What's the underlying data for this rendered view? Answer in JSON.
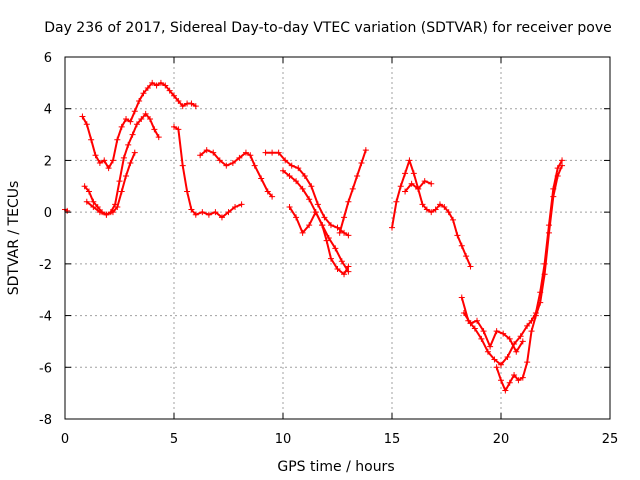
{
  "chart_data": {
    "type": "scatter",
    "title": "Day 236 of 2017, Sidereal Day-to-day VTEC variation (SDTVAR) for receiver pove",
    "xlabel": "GPS time / hours",
    "ylabel": "SDTVAR / TECUs",
    "xlim": [
      0,
      25
    ],
    "ylim": [
      -8,
      6
    ],
    "x_ticks": [
      0,
      5,
      10,
      15,
      20,
      25
    ],
    "y_ticks": [
      -8,
      -6,
      -4,
      -2,
      0,
      2,
      4,
      6
    ],
    "x_tick_labels": [
      "0",
      "5",
      "10",
      "15",
      "20",
      "25"
    ],
    "y_tick_labels": [
      "-8",
      "-6",
      "-4",
      "-2",
      "0",
      "2",
      "4",
      "6"
    ],
    "grid": true,
    "marker": "plus",
    "color": "#ff0000",
    "series": [
      {
        "x": [
          0.0,
          0.1
        ],
        "y": [
          0.1,
          0.05
        ]
      },
      {
        "x": [
          0.8,
          1.0,
          1.2,
          1.4,
          1.6,
          1.8,
          2.0,
          2.2,
          2.4,
          2.6,
          2.8,
          3.0,
          3.2,
          3.4,
          3.6,
          3.8,
          4.0,
          4.2,
          4.4,
          4.6,
          4.8,
          5.0,
          5.2,
          5.4,
          5.6,
          5.8,
          6.0
        ],
        "y": [
          3.7,
          3.4,
          2.8,
          2.2,
          1.9,
          2.0,
          1.7,
          2.0,
          2.8,
          3.3,
          3.6,
          3.5,
          3.9,
          4.3,
          4.6,
          4.8,
          5.0,
          4.9,
          5.0,
          4.9,
          4.7,
          4.5,
          4.3,
          4.1,
          4.2,
          4.2,
          4.1
        ]
      },
      {
        "x": [
          0.9,
          1.1,
          1.3,
          1.5,
          1.7,
          1.9,
          2.1,
          2.3,
          2.5,
          2.7,
          2.9,
          3.1,
          3.3,
          3.5,
          3.7,
          3.9,
          4.1,
          4.3
        ],
        "y": [
          1.0,
          0.8,
          0.4,
          0.2,
          0.0,
          -0.1,
          0.0,
          0.3,
          1.2,
          2.1,
          2.6,
          3.0,
          3.4,
          3.6,
          3.8,
          3.6,
          3.2,
          2.9
        ]
      },
      {
        "x": [
          1.0,
          1.3,
          1.6,
          1.9,
          2.2,
          2.4,
          2.6,
          2.8,
          3.0,
          3.2
        ],
        "y": [
          0.4,
          0.2,
          0.0,
          -0.1,
          0.0,
          0.2,
          0.8,
          1.4,
          1.9,
          2.3
        ]
      },
      {
        "x": [
          5.0,
          5.2,
          5.4,
          5.6,
          5.8,
          6.0,
          6.3,
          6.6,
          6.9,
          7.2,
          7.5,
          7.8,
          8.1
        ],
        "y": [
          3.3,
          3.2,
          1.8,
          0.8,
          0.1,
          -0.1,
          0.0,
          -0.1,
          0.0,
          -0.2,
          0.0,
          0.2,
          0.3
        ]
      },
      {
        "x": [
          6.2,
          6.5,
          6.8,
          7.1,
          7.4,
          7.7,
          8.0,
          8.3,
          8.5,
          8.7,
          9.0,
          9.3,
          9.5
        ],
        "y": [
          2.2,
          2.4,
          2.3,
          2.0,
          1.8,
          1.9,
          2.1,
          2.3,
          2.2,
          1.8,
          1.3,
          0.8,
          0.6
        ]
      },
      {
        "x": [
          9.2,
          9.5,
          9.8,
          10.1,
          10.4,
          10.7,
          11.0,
          11.3,
          11.6,
          11.9,
          12.2,
          12.5,
          12.8,
          13.0
        ],
        "y": [
          2.3,
          2.3,
          2.3,
          2.0,
          1.8,
          1.7,
          1.4,
          1.0,
          0.3,
          -0.2,
          -0.5,
          -0.6,
          -0.8,
          -0.9
        ]
      },
      {
        "x": [
          10.0,
          10.3,
          10.6,
          10.9,
          11.2,
          11.5,
          11.8,
          12.1,
          12.4,
          12.7,
          13.0
        ],
        "y": [
          1.6,
          1.4,
          1.2,
          0.9,
          0.5,
          0.0,
          -0.5,
          -1.0,
          -1.4,
          -1.9,
          -2.3
        ]
      },
      {
        "x": [
          10.3,
          10.6,
          10.9,
          11.2,
          11.5,
          11.8,
          12.0,
          12.2,
          12.5,
          12.8,
          13.0
        ],
        "y": [
          0.2,
          -0.2,
          -0.8,
          -0.5,
          0.0,
          -0.5,
          -1.1,
          -1.8,
          -2.2,
          -2.4,
          -2.1
        ]
      },
      {
        "x": [
          12.6,
          12.8,
          13.0,
          13.2,
          13.4,
          13.6,
          13.8
        ],
        "y": [
          -0.8,
          -0.2,
          0.4,
          0.9,
          1.4,
          1.9,
          2.4
        ]
      },
      {
        "x": [
          15.0,
          15.2,
          15.4,
          15.6,
          15.8,
          16.0,
          16.2,
          16.4,
          16.6,
          16.8,
          17.0,
          17.2,
          17.4,
          17.6,
          17.8,
          18.0,
          18.2,
          18.4,
          18.6
        ],
        "y": [
          -0.6,
          0.4,
          1.0,
          1.5,
          2.0,
          1.5,
          0.9,
          0.3,
          0.1,
          0.0,
          0.1,
          0.3,
          0.2,
          0.0,
          -0.3,
          -0.9,
          -1.3,
          -1.7,
          -2.1
        ]
      },
      {
        "x": [
          15.6,
          15.9,
          16.2,
          16.5,
          16.8
        ],
        "y": [
          0.8,
          1.1,
          0.9,
          1.2,
          1.1
        ]
      },
      {
        "x": [
          18.2,
          18.5,
          18.8,
          19.1,
          19.4,
          19.7,
          20.0,
          20.3,
          20.6,
          20.9,
          21.2,
          21.4,
          21.6,
          21.8,
          22.0,
          22.2,
          22.4,
          22.6,
          22.8
        ],
        "y": [
          -3.3,
          -4.2,
          -4.5,
          -4.9,
          -5.4,
          -5.7,
          -5.9,
          -5.6,
          -5.1,
          -4.8,
          -4.4,
          -4.2,
          -3.9,
          -3.1,
          -2.0,
          -0.5,
          0.9,
          1.7,
          2.0
        ]
      },
      {
        "x": [
          18.3,
          18.6,
          18.9,
          19.2,
          19.5,
          19.8,
          20.1,
          20.4,
          20.7,
          21.0
        ],
        "y": [
          -3.9,
          -4.3,
          -4.2,
          -4.6,
          -5.2,
          -4.6,
          -4.7,
          -4.9,
          -5.4,
          -5.0
        ]
      },
      {
        "x": [
          19.8,
          20.0,
          20.2,
          20.4,
          20.6,
          20.8,
          21.0,
          21.2,
          21.4,
          21.6,
          21.8,
          22.0,
          22.2,
          22.4,
          22.6,
          22.8
        ],
        "y": [
          -6.0,
          -6.5,
          -6.9,
          -6.6,
          -6.3,
          -6.5,
          -6.4,
          -5.8,
          -4.6,
          -4.0,
          -3.5,
          -2.4,
          -0.8,
          0.6,
          1.4,
          1.8
        ]
      }
    ]
  }
}
